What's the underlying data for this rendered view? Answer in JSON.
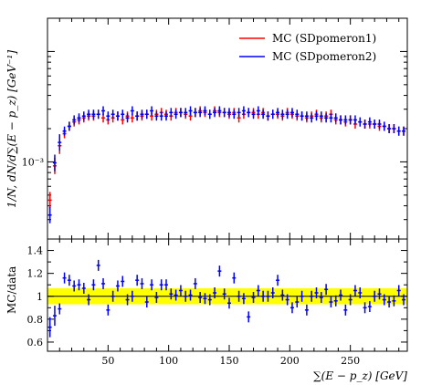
{
  "chart_data": [
    {
      "type": "scatter",
      "panel": "main",
      "ylabel": "1/N, dN/d∑(E − p_z) [GeV⁻¹]",
      "yscale": "log",
      "y_tick_labels": [
        "10⁻³"
      ],
      "y_tick_values": [
        0.001
      ],
      "ylim": [
        0.0002,
        0.02
      ],
      "xlim": [
        0,
        297
      ],
      "legend": {
        "placement": "top-right"
      },
      "series": [
        {
          "name": "MC (SDpomeron1)",
          "color": "#ff0000",
          "x": [
            2,
            6,
            10,
            14,
            18,
            22,
            26,
            30,
            34,
            38,
            42,
            46,
            50,
            54,
            58,
            62,
            66,
            70,
            74,
            78,
            82,
            86,
            90,
            94,
            98,
            102,
            106,
            110,
            114,
            118,
            122,
            126,
            130,
            134,
            138,
            142,
            146,
            150,
            154,
            158,
            162,
            166,
            170,
            174,
            178,
            182,
            186,
            190,
            194,
            198,
            202,
            206,
            210,
            214,
            218,
            222,
            226,
            230,
            234,
            238,
            242,
            246,
            250,
            254,
            258,
            262,
            266,
            270,
            274,
            278,
            282,
            286,
            290,
            294
          ],
          "y": [
            0.00045,
            0.00092,
            0.0014,
            0.0018,
            0.0021,
            0.0023,
            0.0024,
            0.0025,
            0.0026,
            0.0026,
            0.0027,
            0.0025,
            0.0024,
            0.0025,
            0.0026,
            0.0024,
            0.0026,
            0.0025,
            0.0026,
            0.0026,
            0.0027,
            0.0026,
            0.0027,
            0.0028,
            0.0027,
            0.0026,
            0.0028,
            0.0028,
            0.0027,
            0.0026,
            0.0028,
            0.0029,
            0.0028,
            0.0027,
            0.0029,
            0.0028,
            0.0028,
            0.0027,
            0.0028,
            0.0025,
            0.0027,
            0.0028,
            0.0028,
            0.0027,
            0.0028,
            0.0026,
            0.0027,
            0.0027,
            0.0026,
            0.0028,
            0.0027,
            0.0026,
            0.0026,
            0.0025,
            0.0026,
            0.0027,
            0.0025,
            0.0026,
            0.0027,
            0.0024,
            0.0024,
            0.0023,
            0.0024,
            0.0022,
            0.0023,
            0.0022,
            0.0022,
            0.0022,
            0.0021,
            0.0021,
            0.002,
            0.002,
            0.0019,
            0.0019
          ]
        },
        {
          "name": "MC (SDpomeron2)",
          "color": "#0000ff",
          "x": [
            2,
            6,
            10,
            14,
            18,
            22,
            26,
            30,
            34,
            38,
            42,
            46,
            50,
            54,
            58,
            62,
            66,
            70,
            74,
            78,
            82,
            86,
            90,
            94,
            98,
            102,
            106,
            110,
            114,
            118,
            122,
            126,
            130,
            134,
            138,
            142,
            146,
            150,
            154,
            158,
            162,
            166,
            170,
            174,
            178,
            182,
            186,
            190,
            194,
            198,
            202,
            206,
            210,
            214,
            218,
            222,
            226,
            230,
            234,
            238,
            242,
            246,
            250,
            254,
            258,
            262,
            266,
            270,
            274,
            278,
            282,
            286,
            290,
            294
          ],
          "y": [
            0.00033,
            0.00098,
            0.0015,
            0.0019,
            0.0021,
            0.0024,
            0.0025,
            0.0026,
            0.0027,
            0.0027,
            0.0027,
            0.0029,
            0.0026,
            0.0027,
            0.0026,
            0.0027,
            0.0025,
            0.0029,
            0.0026,
            0.0027,
            0.0027,
            0.0029,
            0.0026,
            0.0026,
            0.0026,
            0.0028,
            0.0027,
            0.0028,
            0.0028,
            0.0029,
            0.0028,
            0.0028,
            0.0029,
            0.0027,
            0.0028,
            0.0029,
            0.0028,
            0.0028,
            0.0027,
            0.0028,
            0.0029,
            0.0028,
            0.0027,
            0.0029,
            0.0027,
            0.0026,
            0.0027,
            0.0028,
            0.0027,
            0.0027,
            0.0028,
            0.0027,
            0.0026,
            0.0026,
            0.0025,
            0.0026,
            0.0026,
            0.0025,
            0.0025,
            0.0025,
            0.0024,
            0.0024,
            0.0024,
            0.0024,
            0.0023,
            0.0022,
            0.0023,
            0.0022,
            0.0022,
            0.0021,
            0.002,
            0.002,
            0.0019,
            0.0019
          ]
        }
      ]
    },
    {
      "type": "scatter",
      "panel": "ratio",
      "ylabel": "MC/data",
      "xlabel": "∑(E − p_z) [GeV]",
      "xlim": [
        0,
        297
      ],
      "ylim": [
        0.52,
        1.5
      ],
      "x_ticks": [
        50,
        100,
        150,
        200,
        250
      ],
      "y_ticks": [
        0.6,
        0.8,
        1,
        1.2,
        1.4
      ],
      "y_tick_labels": [
        "0.6",
        "0.8",
        "1",
        "1.2",
        "1.4"
      ],
      "band": {
        "low": 0.93,
        "high": 1.07,
        "color": "#ffff00"
      },
      "series": [
        {
          "name": "MC (SDpomeron2)",
          "color": "#0000ff",
          "x": [
            2,
            6,
            10,
            14,
            18,
            22,
            26,
            30,
            34,
            38,
            42,
            46,
            50,
            54,
            58,
            62,
            66,
            70,
            74,
            78,
            82,
            86,
            90,
            94,
            98,
            102,
            106,
            110,
            114,
            118,
            122,
            126,
            130,
            134,
            138,
            142,
            146,
            150,
            154,
            158,
            162,
            166,
            170,
            174,
            178,
            182,
            186,
            190,
            194,
            198,
            202,
            206,
            210,
            214,
            218,
            222,
            226,
            230,
            234,
            238,
            242,
            246,
            250,
            254,
            258,
            262,
            266,
            270,
            274,
            278,
            282,
            286,
            290,
            294
          ],
          "y": [
            0.73,
            0.83,
            0.89,
            1.16,
            1.14,
            1.09,
            1.1,
            1.07,
            0.97,
            1.1,
            1.27,
            1.11,
            0.88,
            1.0,
            1.09,
            1.13,
            0.97,
            1.0,
            1.14,
            1.11,
            0.95,
            1.1,
            0.99,
            1.1,
            1.1,
            1.02,
            1.01,
            1.05,
            1.0,
            1.01,
            1.11,
            0.99,
            0.98,
            0.97,
            1.03,
            1.22,
            1.02,
            0.94,
            1.16,
            1.0,
            0.98,
            0.82,
            0.99,
            1.05,
            1.0,
            1.0,
            1.03,
            1.14,
            1.01,
            0.97,
            0.9,
            0.95,
            1.0,
            0.88,
            1.0,
            1.03,
            0.99,
            1.06,
            0.95,
            0.96,
            1.01,
            0.88,
            0.97,
            1.05,
            1.03,
            0.9,
            0.91,
            1.0,
            1.02,
            0.97,
            0.95,
            0.96,
            1.05,
            0.97
          ]
        }
      ]
    }
  ]
}
